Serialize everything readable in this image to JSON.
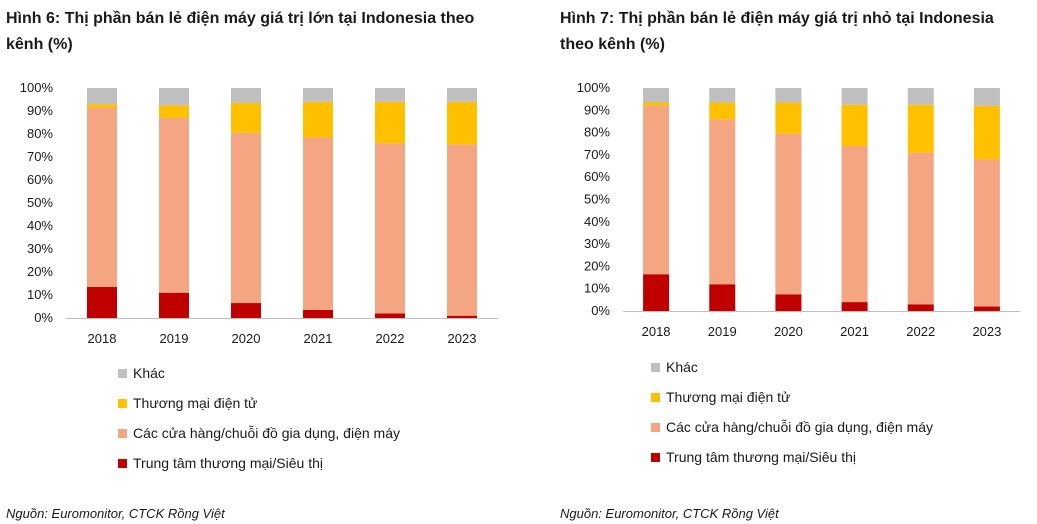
{
  "charts": [
    {
      "title": "Hình 6: Thị phần bán lẻ điện máy giá trị lớn tại Indonesia theo kênh (%)",
      "source": "Nguồn: Euromonitor, CTCK Rồng Việt",
      "chart_data": {
        "type": "bar",
        "stacked": true,
        "categories": [
          "2018",
          "2019",
          "2020",
          "2021",
          "2022",
          "2023"
        ],
        "y_ticks": [
          "0%",
          "10%",
          "20%",
          "30%",
          "40%",
          "50%",
          "60%",
          "70%",
          "80%",
          "90%",
          "100%"
        ],
        "ylim": [
          0,
          100
        ],
        "series": [
          {
            "name": "Trung tâm thương mại/Siêu thị",
            "color": "#c00000",
            "values": [
              13.5,
              11,
              6.5,
              3.5,
              2,
              1
            ]
          },
          {
            "name": "Các cửa hàng/chuỗi đồ gia dụng, điện máy",
            "color": "#f4a582",
            "values": [
              78,
              76,
              74,
              75,
              74,
              74.5
            ]
          },
          {
            "name": "Thương mại điện tử",
            "color": "#ffc000",
            "values": [
              1.5,
              5.5,
              13,
              15.5,
              18,
              18.5
            ]
          },
          {
            "name": "Khác",
            "color": "#bfbfbf",
            "values": [
              7,
              7.5,
              6.5,
              6,
              6,
              6
            ]
          }
        ]
      }
    },
    {
      "title": "Hình 7: Thị phần bán lẻ điện máy giá trị nhỏ tại Indonesia theo kênh (%)",
      "source": "Nguồn: Euromonitor, CTCK Rồng Việt",
      "chart_data": {
        "type": "bar",
        "stacked": true,
        "categories": [
          "2018",
          "2019",
          "2020",
          "2021",
          "2022",
          "2023"
        ],
        "y_ticks": [
          "0%",
          "10%",
          "20%",
          "30%",
          "40%",
          "50%",
          "60%",
          "70%",
          "80%",
          "90%",
          "100%"
        ],
        "ylim": [
          0,
          100
        ],
        "series": [
          {
            "name": "Trung tâm thương mại/Siêu thị",
            "color": "#c00000",
            "values": [
              16.5,
              12,
              7.5,
              4,
              3,
              2
            ]
          },
          {
            "name": "Các cửa hàng/chuỗi đồ gia dụng, điện máy",
            "color": "#f4a582",
            "values": [
              75.5,
              74,
              72,
              70,
              68,
              66
            ]
          },
          {
            "name": "Thương mại điện tử",
            "color": "#ffc000",
            "values": [
              1.5,
              7.5,
              14,
              18.5,
              21.5,
              24
            ]
          },
          {
            "name": "Khác",
            "color": "#bfbfbf",
            "values": [
              6.5,
              6.5,
              6.5,
              7.5,
              7.5,
              8
            ]
          }
        ]
      }
    }
  ]
}
